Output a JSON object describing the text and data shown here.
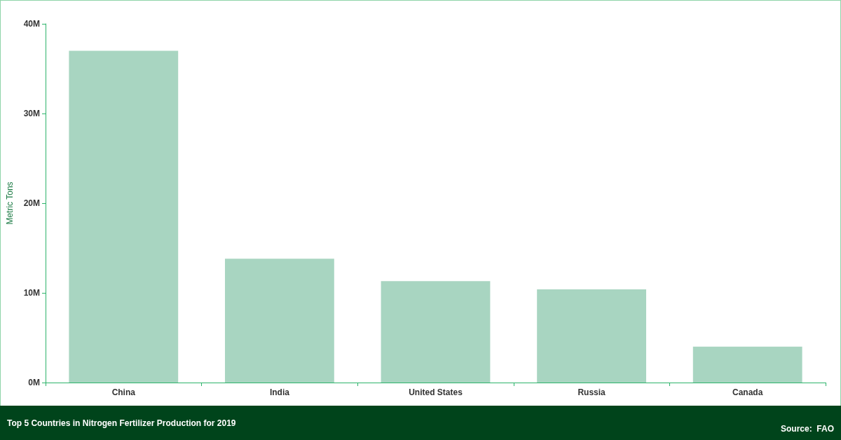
{
  "chart_data": {
    "type": "bar",
    "title": "Top 5 Countries in Nitrogen Fertilizer Production for 2019",
    "ylabel": "Metric Tons",
    "categories": [
      "China",
      "India",
      "United States",
      "Russia",
      "Canada"
    ],
    "values": [
      37000000,
      13800000,
      11300000,
      10400000,
      4000000
    ],
    "color": "#a8d5c1",
    "ylim": [
      0,
      40000000
    ],
    "yticks": [
      {
        "value": 0,
        "label": "0M"
      },
      {
        "value": 10000000,
        "label": "10M"
      },
      {
        "value": 20000000,
        "label": "20M"
      },
      {
        "value": 30000000,
        "label": "30M"
      },
      {
        "value": 40000000,
        "label": "40M"
      }
    ],
    "grid": false,
    "annotations": [
      "Source:  FAO"
    ]
  }
}
